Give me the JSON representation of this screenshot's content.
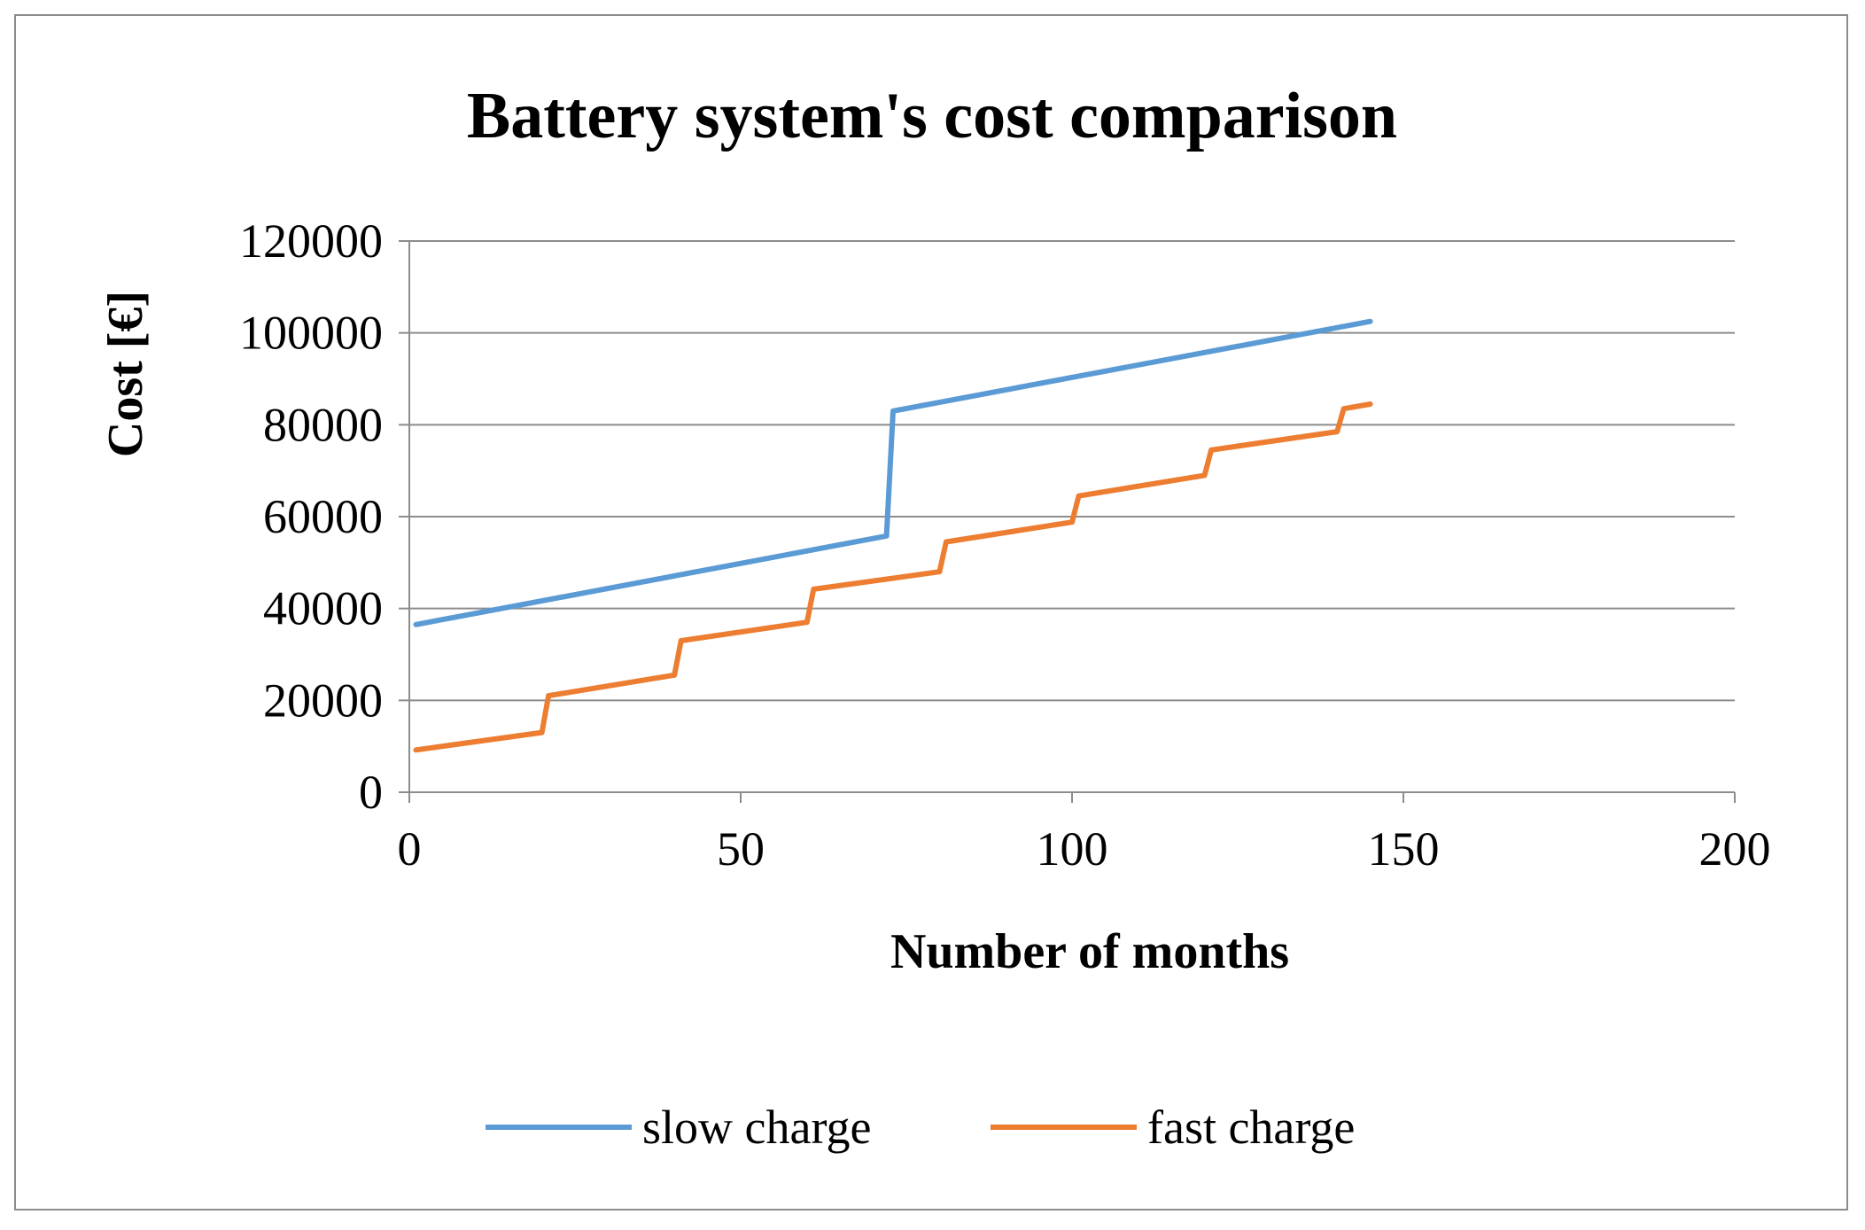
{
  "chart_data": {
    "type": "line",
    "title": "Battery system's cost comparison",
    "xlabel": "Number of months",
    "ylabel": "Cost [€]",
    "xlim": [
      0,
      200
    ],
    "ylim": [
      0,
      120000
    ],
    "x_ticks": [
      0,
      50,
      100,
      150,
      200
    ],
    "y_ticks": [
      0,
      20000,
      40000,
      60000,
      80000,
      100000,
      120000
    ],
    "grid": "horizontal",
    "legend_position": "bottom",
    "series": [
      {
        "name": "slow charge",
        "color": "#5b9bd5",
        "points": [
          [
            1,
            36500
          ],
          [
            72,
            55800
          ],
          [
            73,
            83000
          ],
          [
            145,
            102500
          ]
        ]
      },
      {
        "name": "fast charge",
        "color": "#ed7d31",
        "points": [
          [
            1,
            9200
          ],
          [
            20,
            13000
          ],
          [
            21,
            21000
          ],
          [
            40,
            25500
          ],
          [
            41,
            33000
          ],
          [
            60,
            37000
          ],
          [
            61,
            44200
          ],
          [
            80,
            48000
          ],
          [
            81,
            54500
          ],
          [
            100,
            58800
          ],
          [
            101,
            64500
          ],
          [
            120,
            69000
          ],
          [
            121,
            74500
          ],
          [
            140,
            78500
          ],
          [
            141,
            83500
          ],
          [
            145,
            84500
          ]
        ]
      }
    ]
  }
}
